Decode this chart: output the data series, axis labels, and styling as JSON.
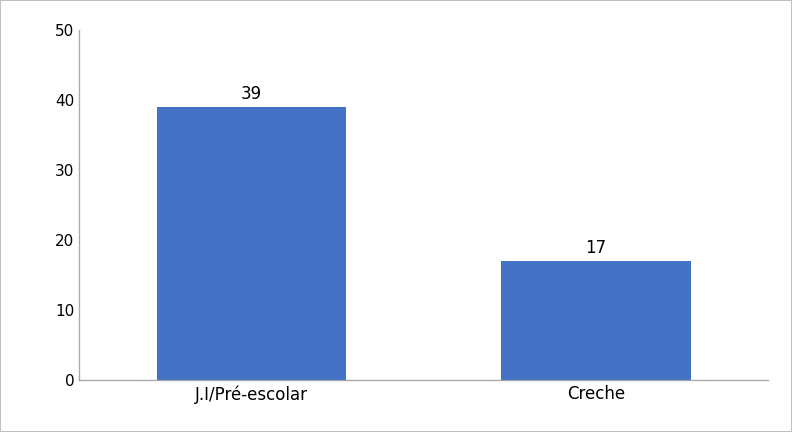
{
  "categories": [
    "J.I/Pré-escolar",
    "Creche"
  ],
  "values": [
    39,
    17
  ],
  "bar_color": "#4472C4",
  "ylim": [
    0,
    50
  ],
  "yticks": [
    0,
    10,
    20,
    30,
    40,
    50
  ],
  "label_fontsize": 12,
  "tick_fontsize": 11,
  "bar_width": 0.55,
  "background_color": "#ffffff",
  "annotation_fontsize": 12,
  "border_color": "#c0c0c0",
  "spine_color": "#aaaaaa"
}
